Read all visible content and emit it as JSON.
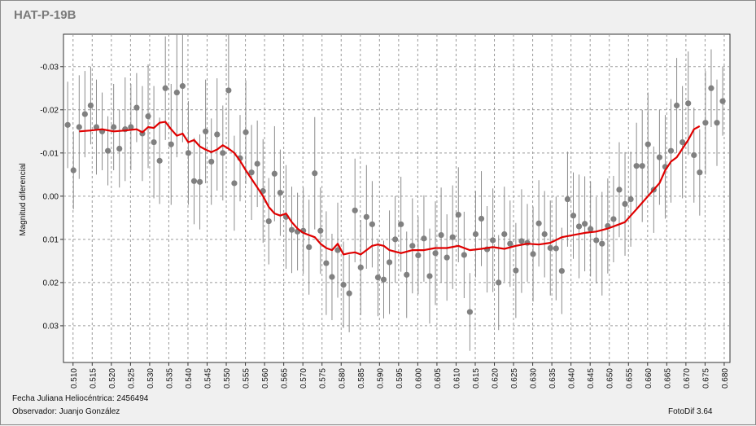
{
  "title": "HAT-P-19B",
  "footer": {
    "fecha": "Fecha Juliana Heliocéntrica: 2456494",
    "observador": "Observador: Juanjo González",
    "software": "FotoDif 3.64"
  },
  "colors": {
    "points": "#808080",
    "errorbars": "#8c8c8c",
    "trend": "#e00000",
    "grid": "#9a9a9a",
    "plot_bg": "#ffffff"
  },
  "chart_data": {
    "type": "scatter",
    "title": "HAT-P-19B",
    "xlabel": "",
    "ylabel": "Magnitud diferencial",
    "xlim": [
      0.5075,
      0.6815
    ],
    "ylim": [
      -0.0375,
      0.0385
    ],
    "y_inverted": true,
    "grid": true,
    "x_ticks": [
      "0.510",
      "0.515",
      "0.520",
      "0.525",
      "0.530",
      "0.535",
      "0.540",
      "0.545",
      "0.550",
      "0.555",
      "0.560",
      "0.565",
      "0.570",
      "0.575",
      "0.580",
      "0.585",
      "0.590",
      "0.595",
      "0.600",
      "0.605",
      "0.610",
      "0.615",
      "0.620",
      "0.625",
      "0.630",
      "0.635",
      "0.640",
      "0.645",
      "0.650",
      "0.655",
      "0.660",
      "0.665",
      "0.670",
      "0.675",
      "0.680"
    ],
    "y_ticks": [
      "-0.03",
      "-0.02",
      "-0.01",
      "0.00",
      "0.01",
      "0.02",
      "0.03"
    ],
    "series": [
      {
        "kind": "points_with_error",
        "x": [
          0.5086,
          0.5101,
          0.5116,
          0.5131,
          0.5146,
          0.5161,
          0.5176,
          0.5191,
          0.5206,
          0.5221,
          0.5236,
          0.5251,
          0.5266,
          0.5281,
          0.5296,
          0.5311,
          0.5326,
          0.5341,
          0.5356,
          0.5371,
          0.5386,
          0.5401,
          0.5416,
          0.5431,
          0.5446,
          0.5461,
          0.5476,
          0.5491,
          0.5506,
          0.5521,
          0.5536,
          0.5551,
          0.5566,
          0.5581,
          0.5596,
          0.5611,
          0.5626,
          0.5641,
          0.5656,
          0.5671,
          0.5686,
          0.5701,
          0.5716,
          0.5731,
          0.5746,
          0.5761,
          0.5776,
          0.5791,
          0.5806,
          0.5821,
          0.5836,
          0.5851,
          0.5866,
          0.5881,
          0.5896,
          0.5911,
          0.5926,
          0.5941,
          0.5956,
          0.5971,
          0.5986,
          0.6001,
          0.6016,
          0.6031,
          0.6046,
          0.6061,
          0.6076,
          0.6091,
          0.6106,
          0.6121,
          0.6136,
          0.6151,
          0.6166,
          0.6181,
          0.6196,
          0.6211,
          0.6226,
          0.6241,
          0.6256,
          0.6271,
          0.6286,
          0.6301,
          0.6316,
          0.6331,
          0.6346,
          0.6361,
          0.6376,
          0.6391,
          0.6406,
          0.6421,
          0.6436,
          0.6451,
          0.6466,
          0.6481,
          0.6496,
          0.6511,
          0.6526,
          0.6541,
          0.6556,
          0.6571,
          0.6586,
          0.6601,
          0.6616,
          0.6631,
          0.6646,
          0.6661,
          0.6676,
          0.6691,
          0.6706,
          0.6721,
          0.6736,
          0.6751,
          0.6766,
          0.6781,
          0.6796
        ],
        "y": [
          -0.0165,
          -0.006,
          -0.016,
          -0.019,
          -0.021,
          -0.016,
          -0.015,
          -0.0105,
          -0.016,
          -0.011,
          -0.0155,
          -0.016,
          -0.0205,
          -0.0145,
          -0.0185,
          -0.0125,
          -0.0082,
          -0.025,
          -0.012,
          -0.024,
          -0.0255,
          -0.01,
          -0.0035,
          -0.0033,
          -0.015,
          -0.008,
          -0.0143,
          -0.01,
          -0.0245,
          -0.003,
          -0.0088,
          -0.0148,
          -0.0055,
          -0.0075,
          -0.0012,
          0.0058,
          -0.0052,
          -0.0008,
          0.0048,
          0.0078,
          0.0082,
          0.008,
          0.0118,
          -0.0053,
          0.008,
          0.0155,
          0.0187,
          0.0125,
          0.0205,
          0.0225,
          0.0033,
          0.0165,
          0.0048,
          0.0065,
          0.0188,
          0.0193,
          0.0153,
          0.01,
          0.0065,
          0.0182,
          0.0115,
          0.0137,
          0.0098,
          0.0185,
          0.0132,
          0.009,
          0.0142,
          0.0095,
          0.0043,
          0.0136,
          0.0268,
          0.0088,
          0.0052,
          0.0123,
          0.0102,
          0.02,
          0.0088,
          0.011,
          0.0172,
          0.0104,
          0.0108,
          0.0134,
          0.0063,
          0.0088,
          0.012,
          0.0121,
          0.0173,
          0.0007,
          0.0045,
          0.007,
          0.0064,
          0.0076,
          0.0102,
          0.011,
          0.0069,
          0.0053,
          -0.0015,
          0.0018,
          0.0007,
          -0.007,
          -0.007,
          -0.012,
          -0.0015,
          -0.009,
          -0.0068,
          -0.0105,
          -0.021,
          -0.0125,
          -0.0215,
          -0.0095,
          -0.0055,
          -0.017,
          -0.025,
          -0.017,
          -0.022
        ],
        "err": [
          0.01,
          0.009,
          0.012,
          0.01,
          0.009,
          0.011,
          0.009,
          0.008,
          0.01,
          0.009,
          0.012,
          0.01,
          0.008,
          0.011,
          0.012,
          0.013,
          0.01,
          0.012,
          0.014,
          0.015,
          0.013,
          0.012,
          0.01,
          0.011,
          0.012,
          0.01,
          0.013,
          0.011,
          0.014,
          0.011,
          0.01,
          0.012,
          0.011,
          0.01,
          0.012,
          0.01,
          0.011,
          0.01,
          0.012,
          0.01,
          0.009,
          0.01,
          0.011,
          0.013,
          0.01,
          0.012,
          0.01,
          0.011,
          0.01,
          0.009,
          0.012,
          0.011,
          0.012,
          0.01,
          0.009,
          0.009,
          0.012,
          0.01,
          0.011,
          0.01,
          0.011,
          0.009,
          0.01,
          0.011,
          0.012,
          0.011,
          0.01,
          0.012,
          0.011,
          0.01,
          0.009,
          0.01,
          0.011,
          0.01,
          0.012,
          0.011,
          0.011,
          0.01,
          0.011,
          0.012,
          0.009,
          0.011,
          0.01,
          0.01,
          0.011,
          0.012,
          0.01,
          0.011,
          0.01,
          0.012,
          0.011,
          0.011,
          0.01,
          0.012,
          0.011,
          0.01,
          0.011,
          0.012,
          0.011,
          0.01,
          0.013,
          0.012,
          0.01,
          0.011,
          0.012,
          0.012,
          0.011,
          0.013,
          0.012,
          0.011,
          0.01,
          0.012,
          0.009,
          0.01,
          0.008
        ]
      },
      {
        "kind": "moving_average",
        "x": [
          0.5116,
          0.5146,
          0.5176,
          0.5206,
          0.5236,
          0.5266,
          0.5281,
          0.5296,
          0.5311,
          0.5326,
          0.5341,
          0.5356,
          0.5371,
          0.5386,
          0.5401,
          0.5416,
          0.5431,
          0.5446,
          0.5461,
          0.5476,
          0.5491,
          0.5506,
          0.5521,
          0.5536,
          0.5551,
          0.5566,
          0.5581,
          0.5596,
          0.5611,
          0.5626,
          0.5641,
          0.5656,
          0.5671,
          0.5686,
          0.5701,
          0.5716,
          0.5731,
          0.5746,
          0.5761,
          0.5776,
          0.5791,
          0.5806,
          0.5821,
          0.5836,
          0.5851,
          0.5866,
          0.5881,
          0.5896,
          0.5911,
          0.5926,
          0.5956,
          0.5986,
          0.6016,
          0.6046,
          0.6076,
          0.6106,
          0.6136,
          0.6166,
          0.6196,
          0.6226,
          0.6256,
          0.6286,
          0.6316,
          0.6346,
          0.6376,
          0.6406,
          0.6436,
          0.6466,
          0.6496,
          0.6526,
          0.6541,
          0.6556,
          0.6571,
          0.6586,
          0.6601,
          0.6616,
          0.6631,
          0.6646,
          0.6661,
          0.6676,
          0.6691,
          0.6706,
          0.6721,
          0.6736
        ],
        "y": [
          -0.015,
          -0.0152,
          -0.0155,
          -0.015,
          -0.0152,
          -0.0155,
          -0.0148,
          -0.016,
          -0.0158,
          -0.017,
          -0.0172,
          -0.0155,
          -0.014,
          -0.0145,
          -0.0125,
          -0.013,
          -0.0115,
          -0.0108,
          -0.0102,
          -0.0108,
          -0.0118,
          -0.011,
          -0.01,
          -0.0082,
          -0.006,
          -0.004,
          -0.002,
          0.0,
          0.0025,
          0.004,
          0.0045,
          0.004,
          0.006,
          0.0075,
          0.0085,
          0.009,
          0.0095,
          0.011,
          0.012,
          0.0125,
          0.011,
          0.0135,
          0.0132,
          0.013,
          0.0135,
          0.0125,
          0.0115,
          0.0112,
          0.0115,
          0.0125,
          0.0132,
          0.0125,
          0.0125,
          0.012,
          0.012,
          0.0115,
          0.0125,
          0.0122,
          0.0118,
          0.0122,
          0.0115,
          0.011,
          0.0112,
          0.0108,
          0.0095,
          0.009,
          0.0085,
          0.0082,
          0.0075,
          0.0065,
          0.006,
          0.0045,
          0.003,
          0.0015,
          0.0,
          -0.0015,
          -0.003,
          -0.006,
          -0.008,
          -0.009,
          -0.011,
          -0.013,
          -0.0155,
          -0.0162
        ]
      }
    ]
  }
}
